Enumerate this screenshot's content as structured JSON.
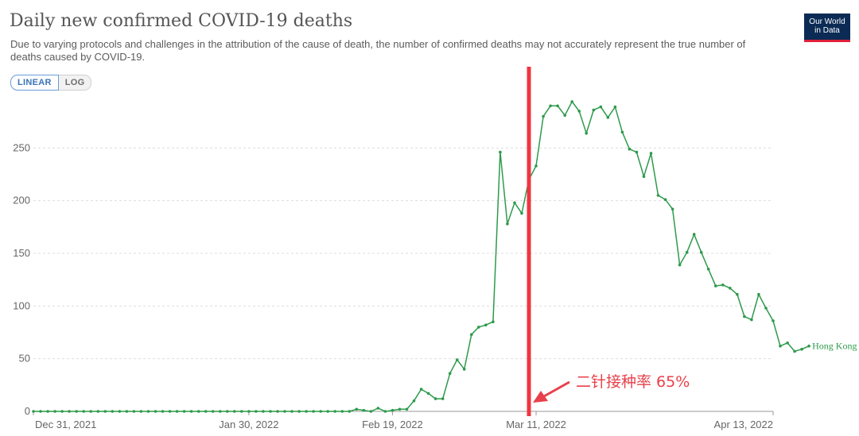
{
  "header": {
    "title": "Daily new confirmed COVID-19 deaths",
    "subtitle": "Due to varying protocols and challenges in the attribution of the cause of death, the number of confirmed deaths may not accurately represent the true number of deaths caused by COVID-19.",
    "scale_options": [
      {
        "label": "LINEAR",
        "active": true
      },
      {
        "label": "LOG",
        "active": false
      }
    ],
    "logo_line1": "Our World",
    "logo_line2": "in Data"
  },
  "colors": {
    "series": "#2e9a4c",
    "marker_line": "#f0353f",
    "annotation": "#e8404a",
    "grid": "#dddddd",
    "axis_text": "#666666"
  },
  "chart_data": {
    "type": "line",
    "title": "Daily new confirmed COVID-19 deaths",
    "x_start": "2021-12-31",
    "x_end": "2022-04-13",
    "xticks": [
      "Dec 31, 2021",
      "Jan 30, 2022",
      "Feb 19, 2022",
      "Mar 11, 2022",
      "Apr 13, 2022"
    ],
    "xtick_dates": [
      "2021-12-31",
      "2022-01-30",
      "2022-02-19",
      "2022-03-11",
      "2022-04-13"
    ],
    "ylim": [
      0,
      300
    ],
    "yticks": [
      0,
      50,
      100,
      150,
      200,
      250
    ],
    "grid": true,
    "series": [
      {
        "name": "Hong Kong",
        "values": [
          0,
          0,
          0,
          0,
          0,
          0,
          0,
          0,
          0,
          0,
          0,
          0,
          0,
          0,
          0,
          0,
          0,
          0,
          0,
          0,
          0,
          0,
          0,
          0,
          0,
          0,
          0,
          0,
          0,
          0,
          0,
          0,
          0,
          0,
          0,
          0,
          0,
          0,
          0,
          0,
          0,
          0,
          0,
          0,
          0,
          2,
          1,
          0,
          3,
          0,
          1,
          2,
          2,
          10,
          21,
          17,
          12,
          12,
          36,
          49,
          40,
          73,
          80,
          82,
          85,
          246,
          178,
          198,
          188,
          220,
          233,
          280,
          290,
          290,
          281,
          294,
          285,
          264,
          286,
          289,
          279,
          289,
          265,
          249,
          246,
          223,
          245,
          205,
          201,
          192,
          139,
          151,
          168,
          151,
          135,
          119,
          120,
          117,
          111,
          90,
          87,
          111,
          98,
          86,
          62,
          65,
          57,
          59,
          62
        ]
      }
    ],
    "vertical_marker": {
      "date": "2022-03-10",
      "annotation": "二针接种率 65%"
    }
  }
}
